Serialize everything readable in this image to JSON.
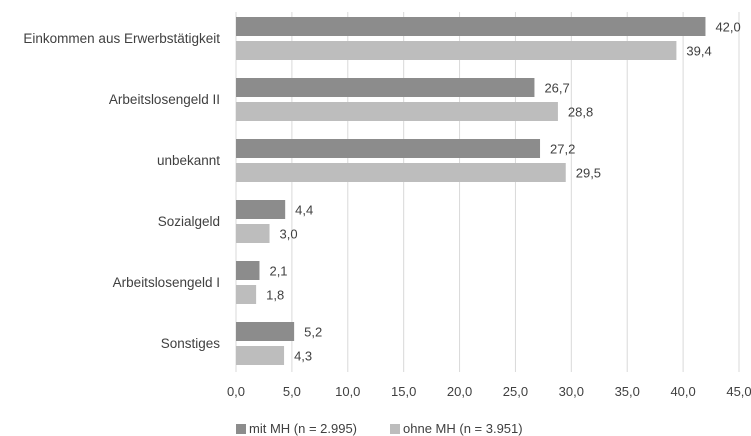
{
  "chart_data": {
    "type": "bar",
    "orientation": "horizontal",
    "title": "",
    "xlabel": "",
    "ylabel": "",
    "categories": [
      "Einkommen aus Erwerbstätigkeit",
      "Arbeitslosengeld II",
      "unbekannt",
      "Sozialgeld",
      "Arbeitslosengeld I",
      "Sonstiges"
    ],
    "series": [
      {
        "name": "mit MH (n = 2.995)",
        "color": "#8c8c8c",
        "values": [
          42.0,
          26.7,
          27.2,
          4.4,
          2.1,
          5.2
        ]
      },
      {
        "name": "ohne MH (n = 3.951)",
        "color": "#bdbdbd",
        "values": [
          39.4,
          28.8,
          29.5,
          3.0,
          1.8,
          4.3
        ]
      }
    ],
    "value_labels": [
      [
        "42,0",
        "26,7",
        "27,2",
        "4,4",
        "2,1",
        "5,2"
      ],
      [
        "39,4",
        "28,8",
        "29,5",
        "3,0",
        "1,8",
        "4,3"
      ]
    ],
    "xlim": [
      0,
      45
    ],
    "x_ticks": [
      0,
      5,
      10,
      15,
      20,
      25,
      30,
      35,
      40,
      45
    ],
    "x_tick_labels": [
      "0,0",
      "5,0",
      "10,0",
      "15,0",
      "20,0",
      "25,0",
      "30,0",
      "35,0",
      "40,0",
      "45,0"
    ],
    "grid": true,
    "legend_position": "bottom"
  }
}
